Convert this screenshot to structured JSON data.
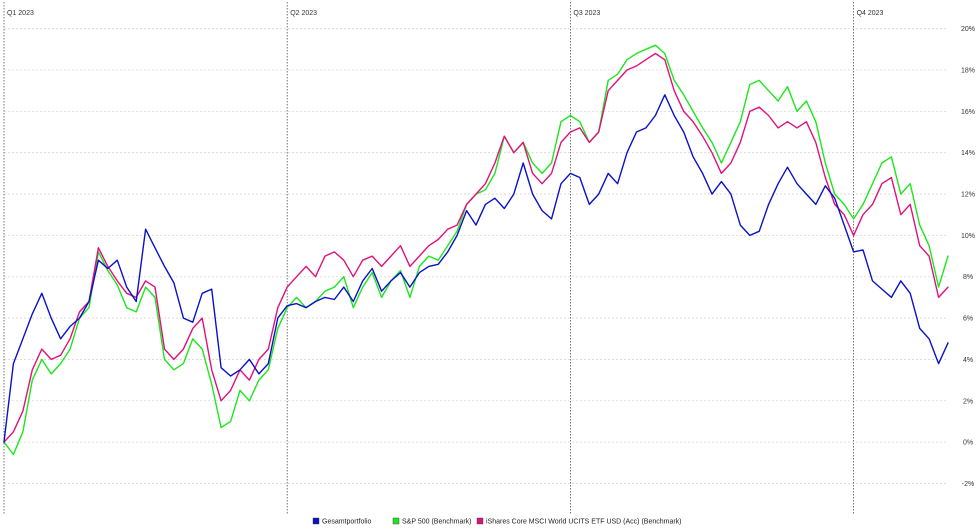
{
  "chart_data": {
    "type": "line",
    "title": "",
    "xlabel": "",
    "ylabel": "",
    "ylim": [
      -2.8,
      21
    ],
    "y_ticks": [
      "-2%",
      "0%",
      "2%",
      "4%",
      "6%",
      "8%",
      "10%",
      "12%",
      "14%",
      "16%",
      "18%",
      "20%"
    ],
    "y_tick_values": [
      -2,
      0,
      2,
      4,
      6,
      8,
      10,
      12,
      14,
      16,
      18,
      20
    ],
    "y_axis_side": "right",
    "x_range": [
      0,
      1
    ],
    "periods": [
      {
        "label": "Q1 2023",
        "start": 0.0
      },
      {
        "label": "Q2 2023",
        "start": 0.3
      },
      {
        "label": "Q3 2023",
        "start": 0.6
      },
      {
        "label": "Q4 2023",
        "start": 0.9
      }
    ],
    "grid": true,
    "legend_position": "bottom-center",
    "series": [
      {
        "name": "Gesamtportfolio",
        "color": "#0a12c8",
        "points": [
          [
            0.0,
            0.0
          ],
          [
            0.01,
            3.8
          ],
          [
            0.02,
            5.0
          ],
          [
            0.03,
            6.2
          ],
          [
            0.04,
            7.2
          ],
          [
            0.05,
            6.0
          ],
          [
            0.06,
            5.0
          ],
          [
            0.07,
            5.6
          ],
          [
            0.08,
            6.0
          ],
          [
            0.09,
            6.8
          ],
          [
            0.1,
            8.8
          ],
          [
            0.11,
            8.4
          ],
          [
            0.12,
            8.8
          ],
          [
            0.13,
            7.5
          ],
          [
            0.14,
            6.8
          ],
          [
            0.15,
            10.3
          ],
          [
            0.16,
            9.4
          ],
          [
            0.17,
            8.5
          ],
          [
            0.18,
            7.7
          ],
          [
            0.19,
            6.0
          ],
          [
            0.2,
            5.8
          ],
          [
            0.21,
            7.2
          ],
          [
            0.22,
            7.4
          ],
          [
            0.23,
            3.6
          ],
          [
            0.24,
            3.2
          ],
          [
            0.25,
            3.5
          ],
          [
            0.26,
            4.0
          ],
          [
            0.27,
            3.3
          ],
          [
            0.28,
            3.8
          ],
          [
            0.29,
            6.0
          ],
          [
            0.3,
            6.6
          ],
          [
            0.31,
            6.7
          ],
          [
            0.32,
            6.5
          ],
          [
            0.33,
            6.8
          ],
          [
            0.34,
            7.0
          ],
          [
            0.35,
            6.9
          ],
          [
            0.36,
            7.5
          ],
          [
            0.37,
            6.8
          ],
          [
            0.38,
            7.8
          ],
          [
            0.39,
            8.4
          ],
          [
            0.4,
            7.3
          ],
          [
            0.41,
            7.8
          ],
          [
            0.42,
            8.2
          ],
          [
            0.43,
            7.5
          ],
          [
            0.44,
            8.2
          ],
          [
            0.45,
            8.5
          ],
          [
            0.46,
            8.6
          ],
          [
            0.47,
            9.2
          ],
          [
            0.48,
            10.0
          ],
          [
            0.49,
            11.2
          ],
          [
            0.5,
            10.5
          ],
          [
            0.51,
            11.5
          ],
          [
            0.52,
            11.8
          ],
          [
            0.53,
            11.3
          ],
          [
            0.54,
            12.0
          ],
          [
            0.55,
            13.5
          ],
          [
            0.56,
            12.0
          ],
          [
            0.57,
            11.2
          ],
          [
            0.58,
            10.8
          ],
          [
            0.59,
            12.5
          ],
          [
            0.6,
            13.0
          ],
          [
            0.61,
            12.8
          ],
          [
            0.62,
            11.5
          ],
          [
            0.63,
            12.0
          ],
          [
            0.64,
            13.0
          ],
          [
            0.65,
            12.5
          ],
          [
            0.66,
            14.0
          ],
          [
            0.67,
            15.0
          ],
          [
            0.68,
            15.2
          ],
          [
            0.69,
            15.8
          ],
          [
            0.7,
            16.8
          ],
          [
            0.71,
            15.8
          ],
          [
            0.72,
            15.0
          ],
          [
            0.73,
            13.8
          ],
          [
            0.74,
            13.0
          ],
          [
            0.75,
            12.0
          ],
          [
            0.76,
            12.6
          ],
          [
            0.77,
            12.0
          ],
          [
            0.78,
            10.5
          ],
          [
            0.79,
            10.0
          ],
          [
            0.8,
            10.2
          ],
          [
            0.81,
            11.5
          ],
          [
            0.82,
            12.5
          ],
          [
            0.83,
            13.3
          ],
          [
            0.84,
            12.5
          ],
          [
            0.85,
            12.0
          ],
          [
            0.86,
            11.5
          ],
          [
            0.87,
            12.4
          ],
          [
            0.88,
            11.8
          ],
          [
            0.89,
            10.5
          ],
          [
            0.9,
            9.2
          ],
          [
            0.91,
            9.3
          ],
          [
            0.92,
            7.8
          ],
          [
            0.93,
            7.4
          ],
          [
            0.94,
            7.0
          ],
          [
            0.95,
            7.8
          ],
          [
            0.96,
            7.2
          ],
          [
            0.97,
            5.5
          ],
          [
            0.98,
            5.0
          ],
          [
            0.99,
            3.8
          ],
          [
            1.0,
            4.8
          ]
        ]
      },
      {
        "name": "S&P 500 (Benchmark)",
        "color": "#1ee61e",
        "points": [
          [
            0.0,
            0.0
          ],
          [
            0.01,
            -0.6
          ],
          [
            0.02,
            0.5
          ],
          [
            0.03,
            3.0
          ],
          [
            0.04,
            4.0
          ],
          [
            0.05,
            3.3
          ],
          [
            0.06,
            3.8
          ],
          [
            0.07,
            4.5
          ],
          [
            0.08,
            6.0
          ],
          [
            0.09,
            6.5
          ],
          [
            0.1,
            9.2
          ],
          [
            0.11,
            8.3
          ],
          [
            0.12,
            7.6
          ],
          [
            0.13,
            6.5
          ],
          [
            0.14,
            6.3
          ],
          [
            0.15,
            7.5
          ],
          [
            0.16,
            7.0
          ],
          [
            0.17,
            4.0
          ],
          [
            0.18,
            3.5
          ],
          [
            0.19,
            3.8
          ],
          [
            0.2,
            5.0
          ],
          [
            0.21,
            4.5
          ],
          [
            0.22,
            2.8
          ],
          [
            0.23,
            0.7
          ],
          [
            0.24,
            1.0
          ],
          [
            0.25,
            2.5
          ],
          [
            0.26,
            2.0
          ],
          [
            0.27,
            3.0
          ],
          [
            0.28,
            3.5
          ],
          [
            0.29,
            5.5
          ],
          [
            0.3,
            6.5
          ],
          [
            0.31,
            7.0
          ],
          [
            0.32,
            6.5
          ],
          [
            0.33,
            6.8
          ],
          [
            0.34,
            7.3
          ],
          [
            0.35,
            7.5
          ],
          [
            0.36,
            8.0
          ],
          [
            0.37,
            6.5
          ],
          [
            0.38,
            7.5
          ],
          [
            0.39,
            8.2
          ],
          [
            0.4,
            7.0
          ],
          [
            0.41,
            7.8
          ],
          [
            0.42,
            8.3
          ],
          [
            0.43,
            7.0
          ],
          [
            0.44,
            8.5
          ],
          [
            0.45,
            9.0
          ],
          [
            0.46,
            8.8
          ],
          [
            0.47,
            9.5
          ],
          [
            0.48,
            10.2
          ],
          [
            0.49,
            11.5
          ],
          [
            0.5,
            12.0
          ],
          [
            0.51,
            12.2
          ],
          [
            0.52,
            13.0
          ],
          [
            0.53,
            14.8
          ],
          [
            0.54,
            14.0
          ],
          [
            0.55,
            14.5
          ],
          [
            0.56,
            13.5
          ],
          [
            0.57,
            13.0
          ],
          [
            0.58,
            13.5
          ],
          [
            0.59,
            15.5
          ],
          [
            0.6,
            15.8
          ],
          [
            0.61,
            15.5
          ],
          [
            0.62,
            14.5
          ],
          [
            0.63,
            15.0
          ],
          [
            0.64,
            17.5
          ],
          [
            0.65,
            17.8
          ],
          [
            0.66,
            18.5
          ],
          [
            0.67,
            18.8
          ],
          [
            0.68,
            19.0
          ],
          [
            0.69,
            19.2
          ],
          [
            0.7,
            18.8
          ],
          [
            0.71,
            17.5
          ],
          [
            0.72,
            16.8
          ],
          [
            0.73,
            16.0
          ],
          [
            0.74,
            15.2
          ],
          [
            0.75,
            14.5
          ],
          [
            0.76,
            13.5
          ],
          [
            0.77,
            14.5
          ],
          [
            0.78,
            15.5
          ],
          [
            0.79,
            17.3
          ],
          [
            0.8,
            17.5
          ],
          [
            0.81,
            17.0
          ],
          [
            0.82,
            16.5
          ],
          [
            0.83,
            17.2
          ],
          [
            0.84,
            16.0
          ],
          [
            0.85,
            16.5
          ],
          [
            0.86,
            15.5
          ],
          [
            0.87,
            13.5
          ],
          [
            0.88,
            12.0
          ],
          [
            0.89,
            11.5
          ],
          [
            0.9,
            10.8
          ],
          [
            0.91,
            11.5
          ],
          [
            0.92,
            12.5
          ],
          [
            0.93,
            13.5
          ],
          [
            0.94,
            13.8
          ],
          [
            0.95,
            12.0
          ],
          [
            0.96,
            12.5
          ],
          [
            0.97,
            10.5
          ],
          [
            0.98,
            9.5
          ],
          [
            0.99,
            7.5
          ],
          [
            1.0,
            9.0
          ]
        ]
      },
      {
        "name": "iShares Core MSCI World UCITS ETF USD (Acc) (Benchmark)",
        "color": "#e0127a",
        "points": [
          [
            0.0,
            0.0
          ],
          [
            0.01,
            0.5
          ],
          [
            0.02,
            1.5
          ],
          [
            0.03,
            3.5
          ],
          [
            0.04,
            4.5
          ],
          [
            0.05,
            4.0
          ],
          [
            0.06,
            4.2
          ],
          [
            0.07,
            5.0
          ],
          [
            0.08,
            6.3
          ],
          [
            0.09,
            6.8
          ],
          [
            0.1,
            9.4
          ],
          [
            0.11,
            8.5
          ],
          [
            0.12,
            7.8
          ],
          [
            0.13,
            7.2
          ],
          [
            0.14,
            7.0
          ],
          [
            0.15,
            7.8
          ],
          [
            0.16,
            7.5
          ],
          [
            0.17,
            4.5
          ],
          [
            0.18,
            4.0
          ],
          [
            0.19,
            4.5
          ],
          [
            0.2,
            5.5
          ],
          [
            0.21,
            6.0
          ],
          [
            0.22,
            3.5
          ],
          [
            0.23,
            2.0
          ],
          [
            0.24,
            2.5
          ],
          [
            0.25,
            3.5
          ],
          [
            0.26,
            3.0
          ],
          [
            0.27,
            4.0
          ],
          [
            0.28,
            4.5
          ],
          [
            0.29,
            6.5
          ],
          [
            0.3,
            7.5
          ],
          [
            0.31,
            8.0
          ],
          [
            0.32,
            8.5
          ],
          [
            0.33,
            8.0
          ],
          [
            0.34,
            9.0
          ],
          [
            0.35,
            9.2
          ],
          [
            0.36,
            8.8
          ],
          [
            0.37,
            8.0
          ],
          [
            0.38,
            8.8
          ],
          [
            0.39,
            9.0
          ],
          [
            0.4,
            8.5
          ],
          [
            0.41,
            9.0
          ],
          [
            0.42,
            9.5
          ],
          [
            0.43,
            8.5
          ],
          [
            0.44,
            9.0
          ],
          [
            0.45,
            9.5
          ],
          [
            0.46,
            9.8
          ],
          [
            0.47,
            10.3
          ],
          [
            0.48,
            10.5
          ],
          [
            0.49,
            11.5
          ],
          [
            0.5,
            12.0
          ],
          [
            0.51,
            12.5
          ],
          [
            0.52,
            13.5
          ],
          [
            0.53,
            14.8
          ],
          [
            0.54,
            14.0
          ],
          [
            0.55,
            14.5
          ],
          [
            0.56,
            13.0
          ],
          [
            0.57,
            12.5
          ],
          [
            0.58,
            13.0
          ],
          [
            0.59,
            14.5
          ],
          [
            0.6,
            15.0
          ],
          [
            0.61,
            15.2
          ],
          [
            0.62,
            14.5
          ],
          [
            0.63,
            15.0
          ],
          [
            0.64,
            17.0
          ],
          [
            0.65,
            17.5
          ],
          [
            0.66,
            18.0
          ],
          [
            0.67,
            18.2
          ],
          [
            0.68,
            18.5
          ],
          [
            0.69,
            18.8
          ],
          [
            0.7,
            18.5
          ],
          [
            0.71,
            17.0
          ],
          [
            0.72,
            16.0
          ],
          [
            0.73,
            15.5
          ],
          [
            0.74,
            14.8
          ],
          [
            0.75,
            14.0
          ],
          [
            0.76,
            13.0
          ],
          [
            0.77,
            13.5
          ],
          [
            0.78,
            14.5
          ],
          [
            0.79,
            16.0
          ],
          [
            0.8,
            16.2
          ],
          [
            0.81,
            15.8
          ],
          [
            0.82,
            15.2
          ],
          [
            0.83,
            15.5
          ],
          [
            0.84,
            15.2
          ],
          [
            0.85,
            15.5
          ],
          [
            0.86,
            14.5
          ],
          [
            0.87,
            12.8
          ],
          [
            0.88,
            11.5
          ],
          [
            0.89,
            11.0
          ],
          [
            0.9,
            10.0
          ],
          [
            0.91,
            11.0
          ],
          [
            0.92,
            11.5
          ],
          [
            0.93,
            12.5
          ],
          [
            0.94,
            12.8
          ],
          [
            0.95,
            11.0
          ],
          [
            0.96,
            11.5
          ],
          [
            0.97,
            9.5
          ],
          [
            0.98,
            9.0
          ],
          [
            0.99,
            7.0
          ],
          [
            1.0,
            7.5
          ]
        ]
      }
    ]
  }
}
